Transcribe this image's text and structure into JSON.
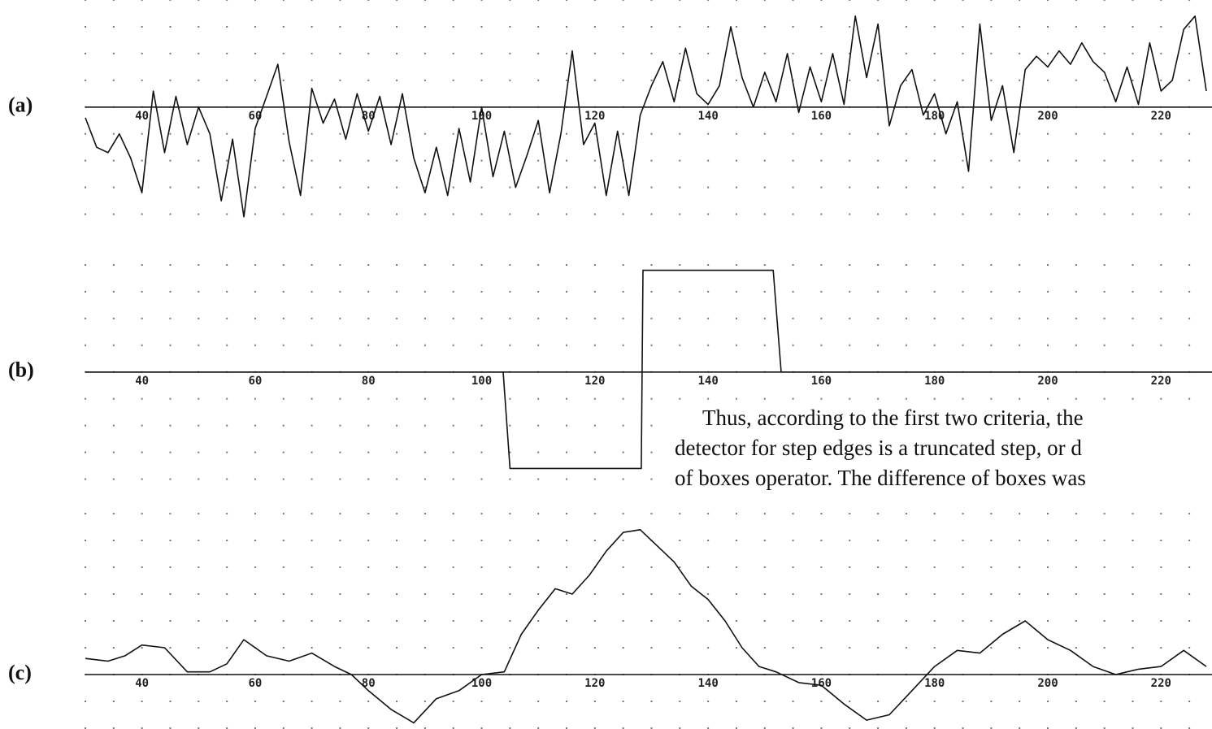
{
  "chart_data": [
    {
      "type": "line",
      "label": "(a)",
      "color": "#111111",
      "grid": true,
      "xlim": [
        30,
        229
      ],
      "ylim": [
        -4.5,
        4
      ],
      "xticks": [
        40,
        60,
        80,
        100,
        120,
        140,
        160,
        180,
        200,
        220
      ],
      "x": [
        30,
        32,
        34,
        36,
        38,
        40,
        42,
        44,
        46,
        48,
        50,
        52,
        54,
        56,
        58,
        60,
        62,
        64,
        66,
        68,
        70,
        72,
        74,
        76,
        78,
        80,
        82,
        84,
        86,
        88,
        90,
        92,
        94,
        96,
        98,
        100,
        102,
        104,
        106,
        108,
        110,
        112,
        114,
        116,
        118,
        120,
        122,
        124,
        126,
        128,
        130,
        132,
        134,
        136,
        138,
        140,
        142,
        144,
        146,
        148,
        150,
        152,
        154,
        156,
        158,
        160,
        162,
        164,
        166,
        168,
        170,
        172,
        174,
        176,
        178,
        180,
        182,
        184,
        186,
        188,
        190,
        192,
        194,
        196,
        198,
        200,
        202,
        204,
        206,
        208,
        210,
        212,
        214,
        216,
        218,
        220,
        222,
        224,
        226,
        228
      ],
      "values": [
        -0.4,
        -1.5,
        -1.7,
        -1.0,
        -1.9,
        -3.2,
        0.6,
        -1.7,
        0.4,
        -1.4,
        0.0,
        -1.0,
        -3.5,
        -1.2,
        -4.1,
        -0.8,
        0.4,
        1.6,
        -1.3,
        -3.3,
        0.7,
        -0.6,
        0.3,
        -1.2,
        0.5,
        -0.9,
        0.4,
        -1.4,
        0.5,
        -1.9,
        -3.2,
        -1.5,
        -3.3,
        -0.8,
        -2.8,
        0.0,
        -2.6,
        -0.9,
        -3.0,
        -1.8,
        -0.5,
        -3.2,
        -1.0,
        2.1,
        -1.4,
        -0.6,
        -3.3,
        -0.9,
        -3.3,
        -0.3,
        0.8,
        1.7,
        0.2,
        2.2,
        0.5,
        0.1,
        0.8,
        3.0,
        1.1,
        0.0,
        1.3,
        0.2,
        2.0,
        -0.2,
        1.5,
        0.2,
        2.0,
        0.1,
        3.4,
        1.1,
        3.1,
        -0.7,
        0.8,
        1.4,
        -0.3,
        0.5,
        -1.0,
        0.2,
        -2.4,
        3.1,
        -0.5,
        0.8,
        -1.7,
        1.4,
        1.9,
        1.5,
        2.1,
        1.6,
        2.4,
        1.7,
        1.3,
        0.2,
        1.5,
        0.1,
        2.4,
        0.6,
        1.0,
        2.9,
        3.4,
        0.6
      ]
    },
    {
      "type": "line",
      "label": "(b)",
      "color": "#111111",
      "grid": true,
      "xlim": [
        30,
        229
      ],
      "ylim": [
        -4.5,
        4
      ],
      "xticks": [
        40,
        60,
        80,
        100,
        120,
        140,
        160,
        180,
        200,
        220
      ],
      "x": [
        30,
        103.8,
        105,
        128.2,
        128.5,
        151.5,
        152.9,
        229
      ],
      "values": [
        0,
        0,
        -3.6,
        -3.6,
        3.8,
        3.8,
        0,
        0
      ]
    },
    {
      "type": "line",
      "label": "(c)",
      "color": "#111111",
      "grid": true,
      "xlim": [
        30,
        229
      ],
      "ylim": [
        -2,
        6
      ],
      "xticks": [
        40,
        60,
        80,
        100,
        120,
        140,
        160,
        180,
        200,
        220
      ],
      "x": [
        30,
        34,
        37,
        40,
        44,
        48,
        52,
        55,
        58,
        62,
        66,
        70,
        74,
        77,
        80,
        84,
        88,
        92,
        96,
        100,
        104,
        107,
        110,
        113,
        116,
        119,
        122,
        125,
        128,
        131,
        134,
        137,
        140,
        143,
        146,
        149,
        152,
        156,
        160,
        164,
        168,
        172,
        176,
        180,
        184,
        188,
        192,
        196,
        200,
        204,
        208,
        212,
        216,
        220,
        224,
        228
      ],
      "values": [
        0.6,
        0.5,
        0.7,
        1.1,
        1.0,
        0.1,
        0.1,
        0.4,
        1.3,
        0.7,
        0.5,
        0.8,
        0.3,
        0.0,
        -0.6,
        -1.3,
        -1.8,
        -0.9,
        -0.6,
        0.0,
        0.1,
        1.5,
        2.4,
        3.2,
        3.0,
        3.7,
        4.6,
        5.3,
        5.4,
        4.8,
        4.2,
        3.3,
        2.8,
        2.0,
        1.0,
        0.3,
        0.1,
        -0.3,
        -0.4,
        -1.1,
        -1.7,
        -1.5,
        -0.6,
        0.3,
        0.9,
        0.8,
        1.5,
        2.0,
        1.3,
        0.9,
        0.3,
        0.0,
        0.2,
        0.3,
        0.9,
        0.3
      ]
    }
  ],
  "text": {
    "lines": [
      "Thus, according to the first two criteria, the",
      "detector for step edges is a truncated step, or d",
      "of boxes operator. The difference of boxes was"
    ]
  }
}
